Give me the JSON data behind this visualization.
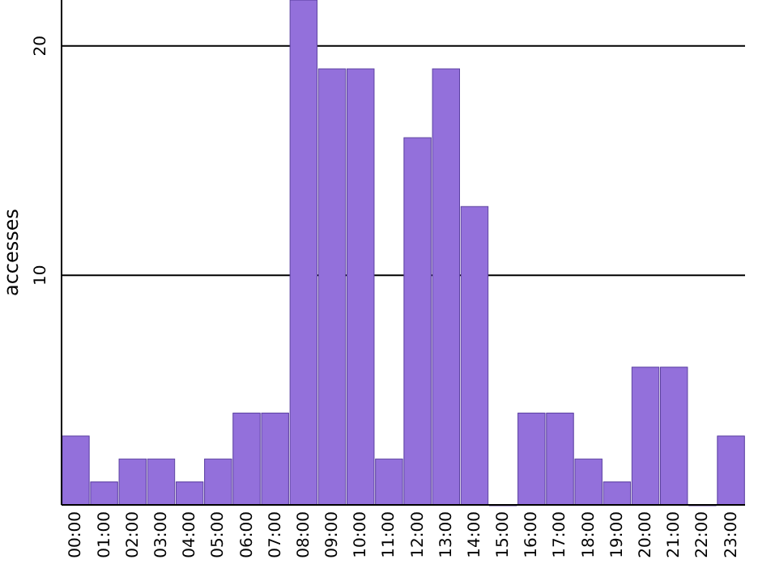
{
  "chart_data": {
    "type": "bar",
    "ylabel": "accesses",
    "categories": [
      "00:00",
      "01:00",
      "02:00",
      "03:00",
      "04:00",
      "05:00",
      "06:00",
      "07:00",
      "08:00",
      "09:00",
      "10:00",
      "11:00",
      "12:00",
      "13:00",
      "14:00",
      "15:00",
      "16:00",
      "17:00",
      "18:00",
      "19:00",
      "20:00",
      "21:00",
      "22:00",
      "23:00"
    ],
    "values": [
      3,
      1,
      2,
      2,
      1,
      2,
      4,
      4,
      22,
      19,
      19,
      2,
      16,
      19,
      13,
      0,
      4,
      4,
      2,
      1,
      6,
      6,
      0,
      3
    ],
    "color": "#9370db",
    "ylim": [
      0,
      22
    ],
    "yticks": [
      10,
      20
    ],
    "grid": "y"
  }
}
